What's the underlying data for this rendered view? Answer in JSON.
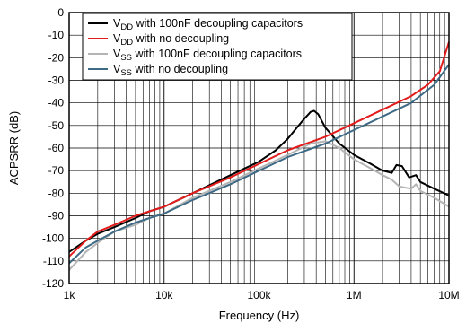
{
  "chart_data": {
    "type": "line",
    "xlabel": "Frequency (Hz)",
    "ylabel": "ACPSRR (dB)",
    "x_scale": "log",
    "xlim": [
      1000,
      10000000
    ],
    "ylim": [
      -120,
      0
    ],
    "grid": true,
    "legend_placement": "top-right",
    "x_ticks": [
      {
        "value": 1000,
        "label": "1k"
      },
      {
        "value": 10000,
        "label": "10k"
      },
      {
        "value": 100000,
        "label": "100k"
      },
      {
        "value": 1000000,
        "label": "1M"
      },
      {
        "value": 10000000,
        "label": "10M"
      }
    ],
    "y_ticks": [
      0,
      -10,
      -20,
      -30,
      -40,
      -50,
      -60,
      -70,
      -80,
      -90,
      -100,
      -110,
      -120
    ],
    "series": [
      {
        "name": "VDD with 100nF decoupling capacitors",
        "legend_main": "V",
        "legend_sub": "DD",
        "legend_rest": " with 100nF decoupling capacitors",
        "color": "#000000",
        "points": [
          [
            1000,
            -106
          ],
          [
            1500,
            -101
          ],
          [
            2000,
            -98
          ],
          [
            3000,
            -95
          ],
          [
            5000,
            -91
          ],
          [
            7000,
            -88
          ],
          [
            10000,
            -86
          ],
          [
            20000,
            -80
          ],
          [
            50000,
            -72
          ],
          [
            100000,
            -66
          ],
          [
            150000,
            -61
          ],
          [
            200000,
            -56
          ],
          [
            250000,
            -51
          ],
          [
            300000,
            -47
          ],
          [
            350000,
            -44
          ],
          [
            380000,
            -43.5
          ],
          [
            420000,
            -45
          ],
          [
            500000,
            -51
          ],
          [
            700000,
            -58
          ],
          [
            1000000,
            -63
          ],
          [
            1500000,
            -67
          ],
          [
            2000000,
            -70
          ],
          [
            2500000,
            -71
          ],
          [
            2800000,
            -67.5
          ],
          [
            3200000,
            -68
          ],
          [
            3800000,
            -73
          ],
          [
            4500000,
            -72
          ],
          [
            5000000,
            -75
          ],
          [
            7000000,
            -78
          ],
          [
            10000000,
            -81
          ]
        ]
      },
      {
        "name": "VDD with no decoupling",
        "legend_main": "V",
        "legend_sub": "DD",
        "legend_rest": " with no decoupling",
        "color": "#e31b1b",
        "points": [
          [
            1000,
            -108
          ],
          [
            1500,
            -101
          ],
          [
            2000,
            -97
          ],
          [
            3000,
            -94
          ],
          [
            5000,
            -90
          ],
          [
            7000,
            -88
          ],
          [
            10000,
            -86
          ],
          [
            20000,
            -80
          ],
          [
            50000,
            -73
          ],
          [
            100000,
            -67
          ],
          [
            200000,
            -61
          ],
          [
            500000,
            -55
          ],
          [
            1000000,
            -49
          ],
          [
            2000000,
            -43
          ],
          [
            4000000,
            -37
          ],
          [
            6000000,
            -32
          ],
          [
            8000000,
            -26
          ],
          [
            10000000,
            -13
          ]
        ]
      },
      {
        "name": "VSS with 100nF decoupling capacitors",
        "legend_main": "V",
        "legend_sub": "SS",
        "legend_rest": " with 100nF decoupling capacitors",
        "color": "#b4b4b4",
        "points": [
          [
            1000,
            -114
          ],
          [
            1500,
            -106
          ],
          [
            2000,
            -102
          ],
          [
            3000,
            -97
          ],
          [
            5000,
            -94
          ],
          [
            7000,
            -91
          ],
          [
            10000,
            -89
          ],
          [
            20000,
            -82
          ],
          [
            50000,
            -75
          ],
          [
            100000,
            -69
          ],
          [
            200000,
            -63
          ],
          [
            350000,
            -58
          ],
          [
            500000,
            -57
          ],
          [
            700000,
            -60
          ],
          [
            1000000,
            -65
          ],
          [
            1500000,
            -69
          ],
          [
            2000000,
            -72
          ],
          [
            2500000,
            -74
          ],
          [
            3000000,
            -77
          ],
          [
            4000000,
            -78
          ],
          [
            4500000,
            -76
          ],
          [
            5000000,
            -79
          ],
          [
            7000000,
            -82
          ],
          [
            10000000,
            -86
          ]
        ]
      },
      {
        "name": "VSS with no decoupling",
        "legend_main": "V",
        "legend_sub": "SS",
        "legend_rest": " with no decoupling",
        "color": "#3e6a86",
        "points": [
          [
            1000,
            -111
          ],
          [
            1500,
            -104
          ],
          [
            2000,
            -101
          ],
          [
            3000,
            -97
          ],
          [
            5000,
            -93
          ],
          [
            7000,
            -91
          ],
          [
            10000,
            -89
          ],
          [
            20000,
            -83
          ],
          [
            50000,
            -76
          ],
          [
            100000,
            -70
          ],
          [
            200000,
            -64
          ],
          [
            500000,
            -58
          ],
          [
            1000000,
            -52
          ],
          [
            2000000,
            -46
          ],
          [
            4000000,
            -40
          ],
          [
            7000000,
            -32
          ],
          [
            10000000,
            -23
          ]
        ]
      }
    ]
  }
}
